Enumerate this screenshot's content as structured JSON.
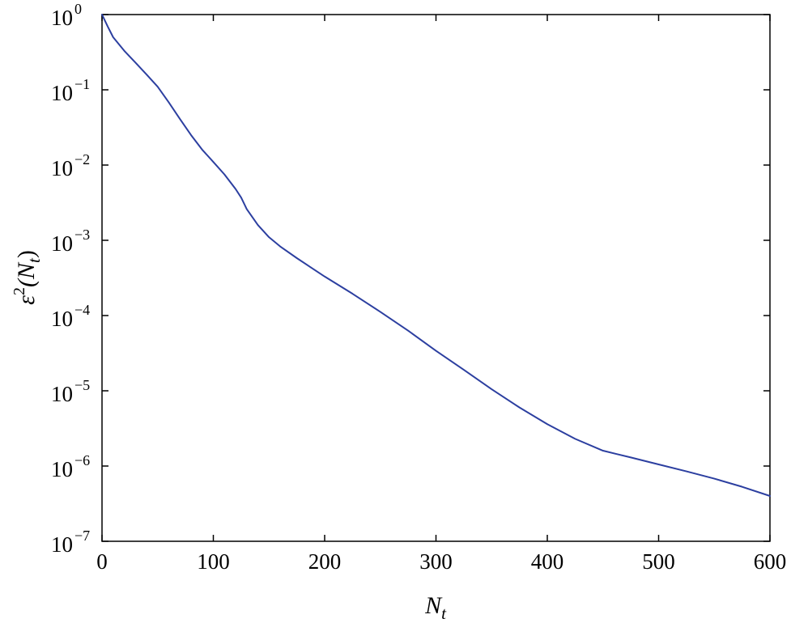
{
  "chart_data": {
    "type": "line",
    "title": "",
    "xlabel": "N",
    "xlabel_sub": "t",
    "ylabel": {
      "base": "ε",
      "sup": "2",
      "open": "(N",
      "sub": "t",
      "close": ")"
    },
    "x_scale": "linear",
    "y_scale": "log",
    "xlim": [
      0,
      600
    ],
    "ylim": [
      1e-07,
      1
    ],
    "x_ticks": [
      0,
      100,
      200,
      300,
      400,
      500,
      600
    ],
    "x_tick_labels": [
      "0",
      "100",
      "200",
      "300",
      "400",
      "500",
      "600"
    ],
    "y_ticks": [
      {
        "value": 1.0,
        "base": "10",
        "exp": "0"
      },
      {
        "value": 0.1,
        "base": "10",
        "exp": "−1"
      },
      {
        "value": 0.01,
        "base": "10",
        "exp": "−2"
      },
      {
        "value": 0.001,
        "base": "10",
        "exp": "−3"
      },
      {
        "value": 0.0001,
        "base": "10",
        "exp": "−4"
      },
      {
        "value": 1e-05,
        "base": "10",
        "exp": "−5"
      },
      {
        "value": 1e-06,
        "base": "10",
        "exp": "−6"
      },
      {
        "value": 1e-07,
        "base": "10",
        "exp": "−7"
      }
    ],
    "grid": false,
    "series": [
      {
        "color": "#2c3fa0",
        "x": [
          0,
          5,
          10,
          20,
          30,
          40,
          50,
          60,
          70,
          80,
          90,
          100,
          110,
          120,
          125,
          130,
          140,
          150,
          160,
          175,
          200,
          225,
          250,
          275,
          300,
          325,
          350,
          375,
          400,
          425,
          450,
          475,
          500,
          525,
          550,
          575,
          600
        ],
        "y": [
          1.0,
          0.7,
          0.5,
          0.33,
          0.23,
          0.16,
          0.11,
          0.068,
          0.041,
          0.025,
          0.016,
          0.011,
          0.0075,
          0.0048,
          0.0037,
          0.0026,
          0.0016,
          0.0011,
          0.00083,
          0.00058,
          0.00033,
          0.000195,
          0.000112,
          6.3e-05,
          3.4e-05,
          1.9e-05,
          1.05e-05,
          6e-06,
          3.6e-06,
          2.3e-06,
          1.6e-06,
          1.3e-06,
          1.05e-06,
          8.5e-07,
          6.8e-07,
          5.3e-07,
          4e-07
        ]
      }
    ]
  }
}
